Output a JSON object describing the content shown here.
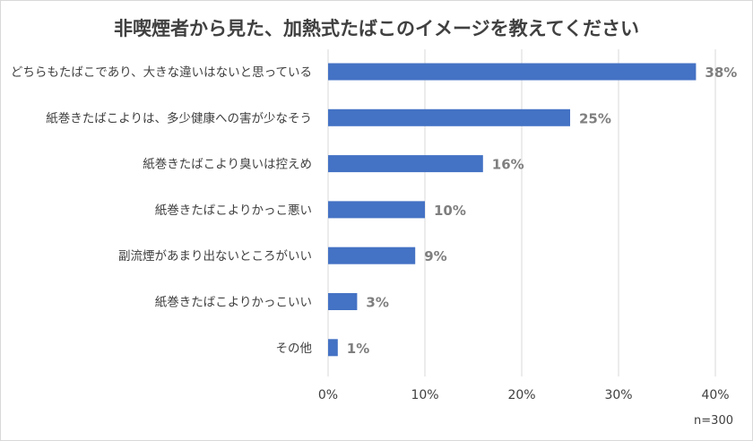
{
  "chart_data": {
    "type": "bar",
    "orientation": "horizontal",
    "title": "非喫煙者から見た、加熱式たばこのイメージを教えてください",
    "note": "n=300",
    "categories": [
      "どちらもたばこであり、大きな違いはないと思っている",
      "紙巻きたばこよりは、多少健康への害が少なそう",
      "紙巻きたばこより臭いは控えめ",
      "紙巻きたばこよりかっこ悪い",
      "副流煙があまり出ないところがいい",
      "紙巻きたばこよりかっこいい",
      "その他"
    ],
    "values": [
      38,
      25,
      16,
      10,
      9,
      3,
      1
    ],
    "value_labels": [
      "38%",
      "25%",
      "16%",
      "10%",
      "9%",
      "3%",
      "1%"
    ],
    "x_ticks": [
      "0%",
      "10%",
      "20%",
      "30%",
      "40%"
    ],
    "xlim": [
      0,
      40
    ],
    "grid": true,
    "bar_color": "#4472c4",
    "grid_color": "#d9d9d9",
    "value_label_color": "#7f7f7f"
  }
}
